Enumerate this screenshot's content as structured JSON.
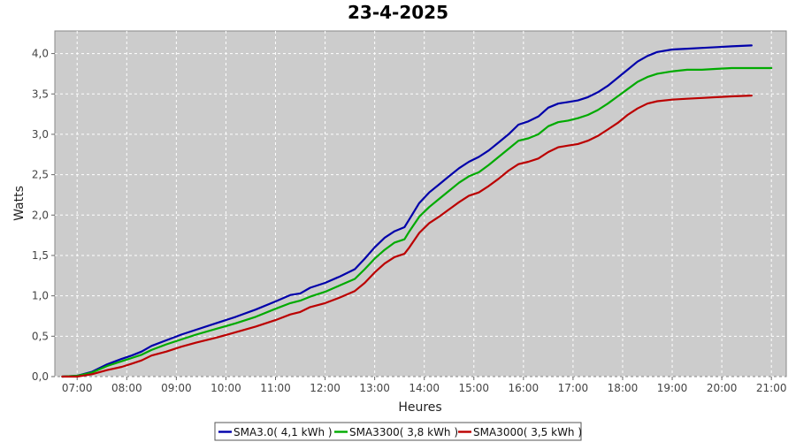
{
  "chart_data": {
    "type": "line",
    "title": "23-4-2025",
    "xlabel": "Heures",
    "ylabel": "Watts",
    "x_ticks": [
      "07:00",
      "08:00",
      "09:00",
      "10:00",
      "11:00",
      "12:00",
      "13:00",
      "14:00",
      "15:00",
      "16:00",
      "17:00",
      "18:00",
      "19:00",
      "20:00",
      "21:00"
    ],
    "y_ticks": [
      "0,0",
      "0,5",
      "1,0",
      "1,5",
      "2,0",
      "2,5",
      "3,0",
      "3,5",
      "4,0"
    ],
    "xlim": [
      6.55,
      21.3
    ],
    "ylim": [
      0,
      4.28
    ],
    "grid": true,
    "legend_position": "bottom",
    "background_color": "#cccccc",
    "series": [
      {
        "name": "SMA3.0( 4,1 kWh )",
        "color": "#0000aa",
        "x": [
          6.7,
          7.0,
          7.3,
          7.6,
          7.9,
          8.1,
          8.3,
          8.5,
          8.8,
          9.1,
          9.4,
          9.8,
          10.2,
          10.6,
          11.0,
          11.3,
          11.5,
          11.7,
          12.0,
          12.3,
          12.6,
          12.8,
          13.0,
          13.2,
          13.4,
          13.6,
          13.7,
          13.9,
          14.1,
          14.3,
          14.5,
          14.7,
          14.9,
          15.1,
          15.3,
          15.5,
          15.7,
          15.9,
          16.1,
          16.3,
          16.5,
          16.7,
          16.9,
          17.1,
          17.3,
          17.5,
          17.7,
          17.9,
          18.1,
          18.3,
          18.5,
          18.7,
          19.0,
          19.3,
          19.6,
          19.9,
          20.2,
          20.6
        ],
        "values": [
          0.0,
          0.01,
          0.06,
          0.15,
          0.22,
          0.26,
          0.31,
          0.38,
          0.45,
          0.52,
          0.58,
          0.66,
          0.74,
          0.83,
          0.93,
          1.01,
          1.03,
          1.1,
          1.16,
          1.24,
          1.33,
          1.46,
          1.6,
          1.72,
          1.8,
          1.85,
          1.95,
          2.15,
          2.28,
          2.38,
          2.48,
          2.58,
          2.66,
          2.72,
          2.8,
          2.9,
          3.0,
          3.12,
          3.16,
          3.22,
          3.33,
          3.38,
          3.4,
          3.42,
          3.46,
          3.52,
          3.6,
          3.7,
          3.8,
          3.9,
          3.97,
          4.02,
          4.05,
          4.06,
          4.07,
          4.08,
          4.09,
          4.1
        ]
      },
      {
        "name": "SMA3300( 3,8 kWh )",
        "color": "#00aa00",
        "x": [
          6.7,
          7.0,
          7.3,
          7.6,
          7.9,
          8.1,
          8.3,
          8.5,
          8.8,
          9.1,
          9.4,
          9.8,
          10.2,
          10.6,
          11.0,
          11.3,
          11.5,
          11.7,
          12.0,
          12.3,
          12.6,
          12.8,
          13.0,
          13.2,
          13.4,
          13.6,
          13.7,
          13.9,
          14.1,
          14.3,
          14.5,
          14.7,
          14.9,
          15.1,
          15.3,
          15.5,
          15.7,
          15.9,
          16.1,
          16.3,
          16.5,
          16.7,
          16.9,
          17.1,
          17.3,
          17.5,
          17.7,
          17.9,
          18.1,
          18.3,
          18.5,
          18.7,
          19.0,
          19.3,
          19.6,
          19.9,
          20.2,
          20.6,
          21.0
        ],
        "values": [
          0.0,
          0.01,
          0.05,
          0.13,
          0.19,
          0.23,
          0.27,
          0.33,
          0.4,
          0.46,
          0.52,
          0.59,
          0.66,
          0.74,
          0.84,
          0.91,
          0.94,
          0.99,
          1.05,
          1.13,
          1.21,
          1.33,
          1.46,
          1.57,
          1.66,
          1.7,
          1.8,
          1.98,
          2.1,
          2.2,
          2.3,
          2.4,
          2.48,
          2.53,
          2.62,
          2.72,
          2.82,
          2.92,
          2.95,
          3.0,
          3.1,
          3.15,
          3.17,
          3.2,
          3.24,
          3.3,
          3.38,
          3.47,
          3.56,
          3.65,
          3.71,
          3.75,
          3.78,
          3.8,
          3.8,
          3.81,
          3.82,
          3.82,
          3.82
        ]
      },
      {
        "name": "SMA3000( 3,5 kWh )",
        "color": "#bb0000",
        "x": [
          6.7,
          7.0,
          7.3,
          7.6,
          7.9,
          8.1,
          8.3,
          8.5,
          8.8,
          9.1,
          9.4,
          9.8,
          10.2,
          10.6,
          11.0,
          11.3,
          11.5,
          11.7,
          12.0,
          12.3,
          12.6,
          12.8,
          13.0,
          13.2,
          13.4,
          13.6,
          13.7,
          13.9,
          14.1,
          14.3,
          14.5,
          14.7,
          14.9,
          15.1,
          15.3,
          15.5,
          15.7,
          15.9,
          16.1,
          16.3,
          16.5,
          16.7,
          16.9,
          17.1,
          17.3,
          17.5,
          17.7,
          17.9,
          18.1,
          18.3,
          18.5,
          18.7,
          19.0,
          19.3,
          19.6,
          19.9,
          20.2,
          20.6
        ],
        "values": [
          0.0,
          0.0,
          0.03,
          0.08,
          0.12,
          0.16,
          0.2,
          0.26,
          0.31,
          0.37,
          0.42,
          0.48,
          0.55,
          0.62,
          0.7,
          0.77,
          0.8,
          0.86,
          0.91,
          0.98,
          1.06,
          1.16,
          1.29,
          1.4,
          1.48,
          1.52,
          1.6,
          1.78,
          1.9,
          1.98,
          2.07,
          2.16,
          2.24,
          2.28,
          2.36,
          2.45,
          2.55,
          2.63,
          2.66,
          2.7,
          2.78,
          2.84,
          2.86,
          2.88,
          2.92,
          2.98,
          3.06,
          3.14,
          3.24,
          3.32,
          3.38,
          3.41,
          3.43,
          3.44,
          3.45,
          3.46,
          3.47,
          3.48
        ]
      }
    ]
  }
}
